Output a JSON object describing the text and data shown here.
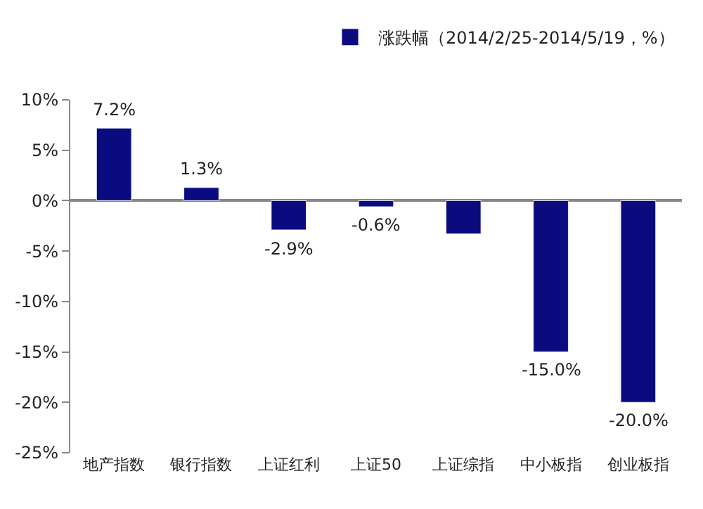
{
  "chart_data": {
    "type": "bar",
    "categories": [
      "地产指数",
      "银行指数",
      "上证红利",
      "上证50",
      "上证综指",
      "中小板指",
      "创业板指"
    ],
    "series": [
      {
        "name": "涨跌幅（2014/2/25-2014/5/19，%）",
        "color": "#0b0b80",
        "values": [
          7.2,
          1.3,
          -2.9,
          -0.6,
          -3.3,
          -15.0,
          -20.0
        ],
        "value_labels": [
          "7.2%",
          "1.3%",
          "-2.9%",
          "-0.6%",
          null,
          "-15.0%",
          "-20.0%"
        ]
      }
    ],
    "ylim": [
      -25,
      10
    ],
    "yticks": [
      {
        "value": -25,
        "label": "-25%"
      },
      {
        "value": -20,
        "label": "-20%"
      },
      {
        "value": -15,
        "label": "-15%"
      },
      {
        "value": -10,
        "label": "-10%"
      },
      {
        "value": -5,
        "label": "-5%"
      },
      {
        "value": 0,
        "label": "0%"
      },
      {
        "value": 5,
        "label": "5%"
      },
      {
        "value": 10,
        "label": "10%"
      }
    ],
    "legend": "top right"
  }
}
